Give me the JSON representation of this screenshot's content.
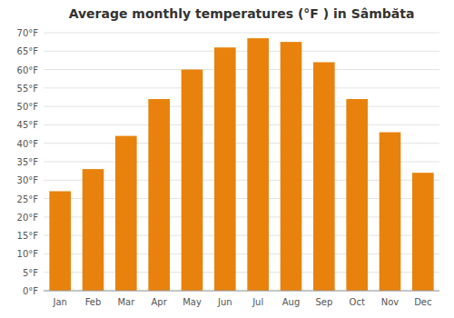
{
  "chart_data": {
    "type": "bar",
    "title": "Average monthly temperatures (°F ) in Sâmbăta",
    "categories": [
      "Jan",
      "Feb",
      "Mar",
      "Apr",
      "May",
      "Jun",
      "Jul",
      "Aug",
      "Sep",
      "Oct",
      "Nov",
      "Dec"
    ],
    "values": [
      27,
      33,
      42,
      52,
      60,
      66,
      68.5,
      67.5,
      62,
      52,
      43,
      32
    ],
    "color": "#E8820C",
    "ylim": [
      0,
      70
    ],
    "yticks": [
      {
        "value": 0,
        "label": "0°F"
      },
      {
        "value": 5,
        "label": "5°F"
      },
      {
        "value": 10,
        "label": "10°F"
      },
      {
        "value": 15,
        "label": "15°F"
      },
      {
        "value": 20,
        "label": "20°F"
      },
      {
        "value": 25,
        "label": "25°F"
      },
      {
        "value": 30,
        "label": "30°F"
      },
      {
        "value": 35,
        "label": "35°F"
      },
      {
        "value": 40,
        "label": "40°F"
      },
      {
        "value": 45,
        "label": "45°F"
      },
      {
        "value": 50,
        "label": "50°F"
      },
      {
        "value": 55,
        "label": "55°F"
      },
      {
        "value": 60,
        "label": "60°F"
      },
      {
        "value": 65,
        "label": "65°F"
      },
      {
        "value": 70,
        "label": "70°F"
      }
    ],
    "grid": true
  }
}
